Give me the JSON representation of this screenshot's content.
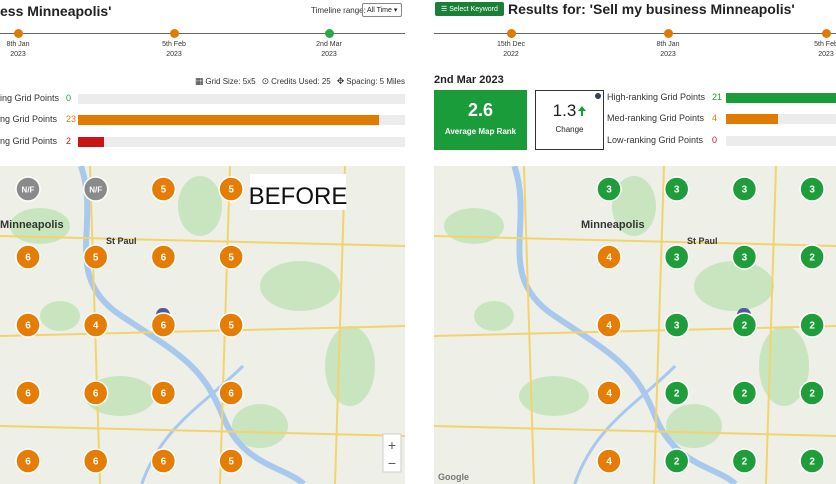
{
  "left": {
    "title": "ess Minneapolis'",
    "timeline_label": "Timeline range:",
    "timeline_select": "All Time",
    "timeline": [
      {
        "date": "8th Jan",
        "year": "2023"
      },
      {
        "date": "5th Feb",
        "year": "2023"
      },
      {
        "date": "2nd Mar",
        "year": "2023"
      }
    ],
    "grid_info": [
      "Grid Size: 5x5",
      "Credits Used: 25",
      "Spacing: 5 Miles"
    ],
    "rankings": [
      {
        "label": "ing Grid Points",
        "count": 0,
        "color": "#1a9c3a"
      },
      {
        "label": "ng Grid Points",
        "count": 23,
        "color": "#e07b00"
      },
      {
        "label": "ng Grid Points",
        "count": 2,
        "color": "#c91515"
      }
    ],
    "map": {
      "badge": "BEFORE",
      "places": [
        "Minneapolis",
        "St Paul"
      ],
      "zoom": [
        "+",
        "−"
      ],
      "markers": [
        [
          {
            "label": "N/F",
            "color": "#8a8a8a"
          },
          {
            "label": "N/F",
            "color": "#8a8a8a"
          },
          {
            "label": "5",
            "color": "#e57c04"
          },
          {
            "label": "5",
            "color": "#e57c04"
          }
        ],
        [
          {
            "label": "6",
            "color": "#e57c04"
          },
          {
            "label": "5",
            "color": "#e57c04"
          },
          {
            "label": "6",
            "color": "#e57c04"
          },
          {
            "label": "5",
            "color": "#e57c04"
          }
        ],
        [
          {
            "label": "6",
            "color": "#e57c04"
          },
          {
            "label": "4",
            "color": "#e57c04"
          },
          {
            "label": "6",
            "color": "#e57c04"
          },
          {
            "label": "5",
            "color": "#e57c04"
          }
        ],
        [
          {
            "label": "6",
            "color": "#e57c04"
          },
          {
            "label": "6",
            "color": "#e57c04"
          },
          {
            "label": "6",
            "color": "#e57c04"
          },
          {
            "label": "6",
            "color": "#e57c04"
          }
        ],
        [
          {
            "label": "6",
            "color": "#e57c04"
          },
          {
            "label": "6",
            "color": "#e57c04"
          },
          {
            "label": "6",
            "color": "#e57c04"
          },
          {
            "label": "5",
            "color": "#e57c04"
          }
        ]
      ]
    }
  },
  "right": {
    "button": "Select Keyword",
    "title": "Results for: 'Sell my business Minneapolis'",
    "timeline": [
      {
        "date": "15th Dec",
        "year": "2022"
      },
      {
        "date": "8th Jan",
        "year": "2023"
      },
      {
        "date": "5th Feb",
        "year": "2023"
      }
    ],
    "date": "2nd Mar 2023",
    "average": {
      "value": "2.6",
      "label": "Average Map Rank"
    },
    "change": {
      "value": "1.3",
      "label": "Change"
    },
    "rankings": [
      {
        "label": "High-ranking Grid Points",
        "count": 21,
        "color": "#1a9c3a"
      },
      {
        "label": "Med-ranking Grid Points",
        "count": 4,
        "color": "#e07b00"
      },
      {
        "label": "Low-ranking Grid Points",
        "count": 0,
        "color": "#c91515"
      }
    ],
    "map": {
      "places": [
        "Minneapolis",
        "St Paul"
      ],
      "logo": "Google",
      "markers": [
        [
          {
            "label": "3",
            "color": "#1f9d3a"
          },
          {
            "label": "3",
            "color": "#1f9d3a"
          },
          {
            "label": "3",
            "color": "#1f9d3a"
          },
          {
            "label": "3",
            "color": "#1f9d3a"
          }
        ],
        [
          {
            "label": "4",
            "color": "#e57c04"
          },
          {
            "label": "3",
            "color": "#1f9d3a"
          },
          {
            "label": "3",
            "color": "#1f9d3a"
          },
          {
            "label": "2",
            "color": "#1f9d3a"
          }
        ],
        [
          {
            "label": "4",
            "color": "#e57c04"
          },
          {
            "label": "3",
            "color": "#1f9d3a"
          },
          {
            "label": "2",
            "color": "#1f9d3a"
          },
          {
            "label": "2",
            "color": "#1f9d3a"
          }
        ],
        [
          {
            "label": "4",
            "color": "#e57c04"
          },
          {
            "label": "2",
            "color": "#1f9d3a"
          },
          {
            "label": "2",
            "color": "#1f9d3a"
          },
          {
            "label": "2",
            "color": "#1f9d3a"
          }
        ],
        [
          {
            "label": "4",
            "color": "#e57c04"
          },
          {
            "label": "2",
            "color": "#1f9d3a"
          },
          {
            "label": "2",
            "color": "#1f9d3a"
          },
          {
            "label": "2",
            "color": "#1f9d3a"
          }
        ]
      ]
    }
  }
}
